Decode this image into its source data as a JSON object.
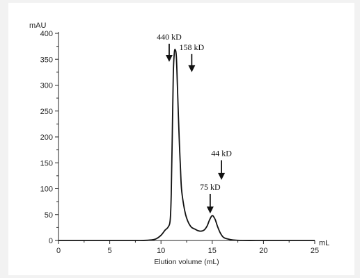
{
  "chart_data": {
    "type": "line",
    "xlabel": "Elution volume (mL)",
    "x_unit": "mL",
    "y_unit": "mAU",
    "xlim": [
      0,
      25
    ],
    "ylim": [
      0,
      400
    ],
    "x_ticks": [
      0,
      5,
      10,
      15,
      20,
      25
    ],
    "y_ticks": [
      0,
      50,
      100,
      150,
      200,
      250,
      300,
      350,
      400
    ],
    "grid": false,
    "series": [
      {
        "x": [
          0,
          5,
          8,
          9,
          9.5,
          10,
          10.4,
          10.7,
          10.9,
          11.0,
          11.1,
          11.2,
          11.3,
          11.4,
          11.5,
          11.6,
          11.7,
          11.8,
          11.9,
          12.0,
          12.2,
          12.4,
          12.6,
          12.8,
          13.0,
          13.3,
          13.6,
          13.9,
          14.2,
          14.5,
          14.7,
          14.9,
          15.0,
          15.1,
          15.3,
          15.5,
          15.8,
          16.1,
          16.5,
          17.0,
          18,
          20,
          22,
          25
        ],
        "y": [
          0,
          0,
          0,
          1,
          3,
          10,
          20,
          26,
          40,
          90,
          200,
          320,
          362,
          368,
          355,
          300,
          240,
          185,
          140,
          100,
          70,
          50,
          38,
          30,
          25,
          22,
          19,
          18,
          20,
          28,
          38,
          46,
          48,
          47,
          40,
          28,
          14,
          6,
          3,
          1,
          0,
          0,
          0,
          0
        ]
      }
    ],
    "annotations": [
      {
        "label": "440 kD",
        "x": 10.8,
        "arrow_from": 380,
        "arrow_to": 345
      },
      {
        "label": "158 kD",
        "x": 13.0,
        "arrow_from": 360,
        "arrow_to": 325
      },
      {
        "label": "44 kD",
        "x": 15.9,
        "arrow_from": 155,
        "arrow_to": 117
      },
      {
        "label": "75 kD",
        "x": 14.8,
        "arrow_from": 90,
        "arrow_to": 52
      }
    ]
  }
}
